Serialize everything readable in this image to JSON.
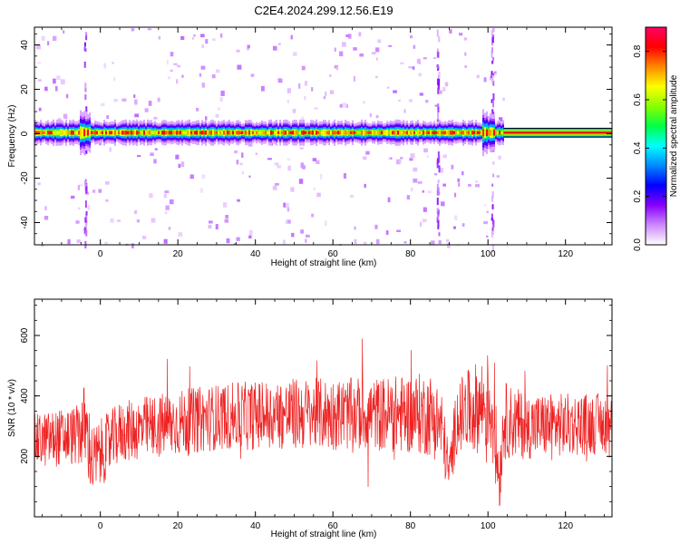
{
  "title": "C2E4.2024.299.12.56.E19",
  "chart_data": [
    {
      "type": "heatmap",
      "xlabel": "Height of straight line (km)",
      "ylabel": "Frequency (Hz)",
      "xlim": [
        -17,
        132
      ],
      "ylim": [
        -50,
        48
      ],
      "xticks": [
        0,
        20,
        40,
        60,
        80,
        100,
        120
      ],
      "yticks": [
        -40,
        -20,
        0,
        20,
        40
      ],
      "colorbar": {
        "label": "Normalized spectral amplitude",
        "range": [
          0,
          0.9
        ],
        "ticks": [
          0.0,
          0.2,
          0.4,
          0.6,
          0.8
        ],
        "tick_labels": [
          "0.0",
          "0.2",
          "0.4",
          "0.6",
          "0.8"
        ],
        "colors": [
          "#ffffff",
          "#cc88ff",
          "#8800ff",
          "#0000ff",
          "#0088ff",
          "#00ffff",
          "#00ff44",
          "#88ff00",
          "#ffff00",
          "#ff8800",
          "#ff0000",
          "#ff0066"
        ]
      },
      "band": {
        "center_freq_hz": 0.5,
        "half_width_hz": 3,
        "peak_amplitude": 0.85,
        "bursts_x": [
          -4,
          100
        ],
        "vertical_streaks_x": [
          -4,
          87,
          101
        ],
        "constant_segment_x": [
          104,
          132
        ]
      }
    },
    {
      "type": "line",
      "xlabel": "Height of straight line (km)",
      "ylabel": "SNR (10 * v/v)",
      "xlim": [
        -17,
        132
      ],
      "ylim": [
        0,
        720
      ],
      "xticks": [
        0,
        20,
        40,
        60,
        80,
        100,
        120
      ],
      "yticks": [
        200,
        400,
        600
      ],
      "color": "#ee2222",
      "envelope": {
        "x": [
          -17,
          -6,
          -4,
          -2,
          5,
          15,
          30,
          50,
          70,
          85,
          88,
          90,
          92,
          100,
          101,
          103,
          104,
          110,
          132
        ],
        "mean": [
          250,
          270,
          300,
          180,
          280,
          300,
          330,
          340,
          340,
          340,
          300,
          140,
          330,
          380,
          360,
          120,
          320,
          300,
          310
        ],
        "spread": [
          90,
          100,
          150,
          120,
          100,
          110,
          110,
          120,
          120,
          140,
          130,
          80,
          120,
          170,
          190,
          100,
          130,
          110,
          100
        ]
      }
    }
  ]
}
